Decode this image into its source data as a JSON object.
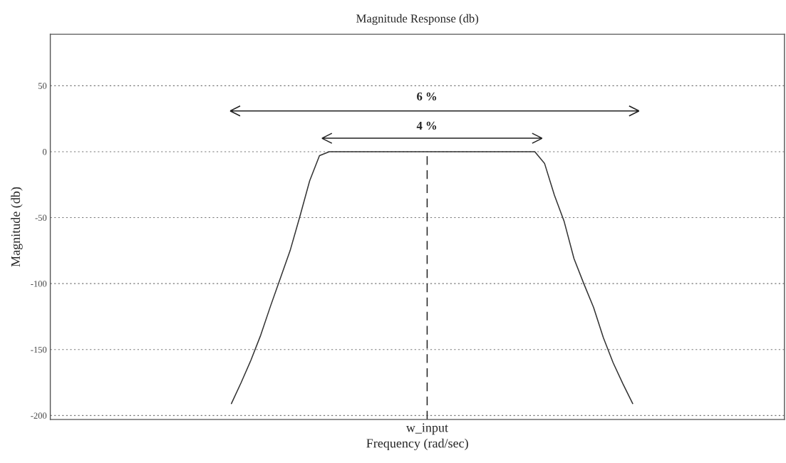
{
  "chart_data": {
    "type": "line",
    "title": "Magnitude Response (db)",
    "xlabel": "Frequency (rad/sec)",
    "ylabel": "Magnitude (db)",
    "categories": [
      null,
      null,
      null,
      null,
      null,
      null,
      null,
      null,
      null,
      null,
      null,
      null,
      null,
      null,
      null,
      null,
      null,
      null,
      null,
      null,
      null,
      null,
      null,
      null,
      null,
      null,
      null,
      null,
      null,
      null,
      null,
      null,
      null,
      null,
      null,
      null,
      null,
      null,
      "w_input",
      null,
      null,
      null,
      null,
      null,
      null,
      null,
      null,
      null,
      null,
      null,
      null,
      null,
      null,
      null,
      null,
      null,
      null,
      null,
      null,
      null,
      null,
      null,
      null,
      null,
      null,
      null,
      null,
      null,
      null,
      null,
      null,
      null,
      null,
      null,
      null
    ],
    "ylim": [
      -203,
      89
    ],
    "yticks": [
      -200,
      -150,
      -100,
      -50,
      0,
      50
    ],
    "grid": "y",
    "line_style": "solid",
    "series": [
      {
        "color": "#333333",
        "values": [
          null,
          null,
          null,
          null,
          null,
          null,
          null,
          null,
          null,
          null,
          null,
          null,
          null,
          null,
          null,
          null,
          null,
          null,
          -191,
          -175,
          -158,
          -139,
          -117,
          -96,
          -75,
          -49,
          -22,
          -3,
          0,
          0,
          0,
          0,
          0,
          0,
          0,
          0,
          0,
          0,
          0,
          0,
          0,
          0,
          0,
          0,
          0,
          0,
          0,
          0,
          0,
          0,
          -9,
          -33,
          -53,
          -81,
          -100,
          -118,
          -141,
          -160,
          -176,
          -191,
          null,
          null,
          null,
          null,
          null,
          null,
          null,
          null,
          null,
          null,
          null,
          null,
          null,
          null,
          null
        ]
      }
    ],
    "ref_lines": [
      {
        "axis": "x",
        "value": "w_input",
        "color": "#222222",
        "line_style": "dashed"
      }
    ],
    "annotations": [
      "6 %",
      "4 %"
    ]
  }
}
